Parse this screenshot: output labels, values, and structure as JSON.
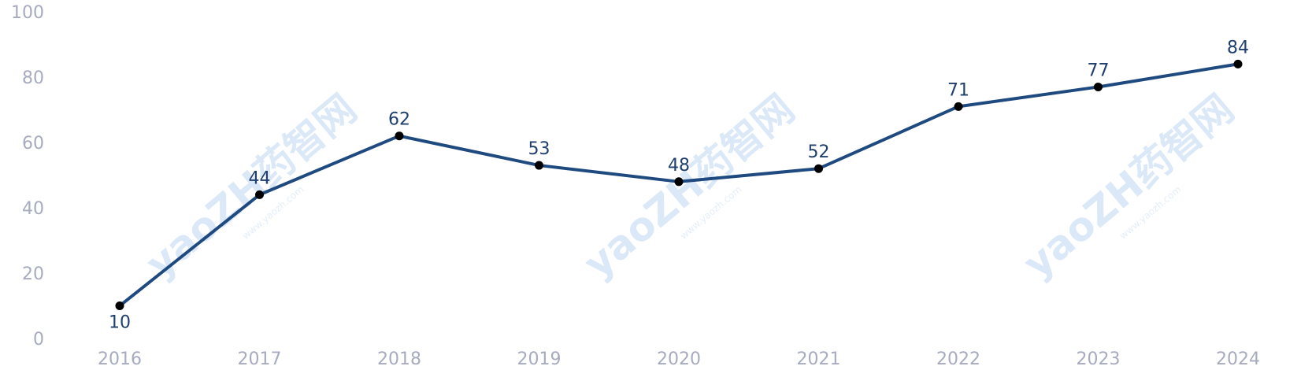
{
  "chart_data": {
    "type": "line",
    "title": "",
    "xlabel": "",
    "ylabel": "",
    "categories": [
      "2016",
      "2017",
      "2018",
      "2019",
      "2020",
      "2021",
      "2022",
      "2023",
      "2024"
    ],
    "series": [
      {
        "values": [
          10,
          44,
          62,
          53,
          48,
          52,
          71,
          77,
          84
        ],
        "color": "#1f4a80"
      }
    ],
    "ylim": [
      0,
      100
    ],
    "yticks": [
      0,
      20,
      40,
      60,
      80,
      100
    ],
    "grid": false,
    "legend": "none",
    "data_labels": true,
    "marker_color": "#000000",
    "tick_color": "#a7abbf",
    "label_color": "#1f3f6e"
  },
  "watermark": {
    "text": "yaoZH药智网",
    "subtext": "www.yaozh.com",
    "color": "#dbe8f8"
  }
}
